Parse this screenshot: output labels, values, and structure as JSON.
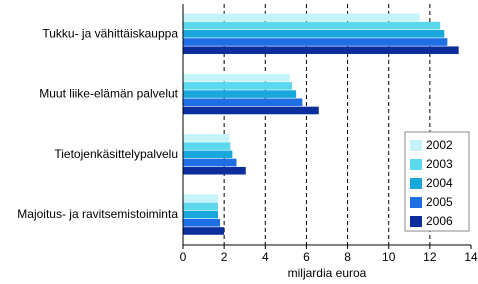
{
  "chart_data": {
    "type": "hbar",
    "categories": [
      "Tukku- ja vähittäiskauppa",
      "Muut liike-elämän palvelut",
      "Tietojenkäsittelypalvelu",
      "Majoitus- ja ravitsemistoiminta"
    ],
    "series": [
      {
        "name": "2002",
        "color": "#c4f4f8",
        "values": [
          11.5,
          5.2,
          2.25,
          1.7
        ]
      },
      {
        "name": "2003",
        "color": "#5cd8ee",
        "values": [
          12.5,
          5.3,
          2.3,
          1.7
        ]
      },
      {
        "name": "2004",
        "color": "#18a8de",
        "values": [
          12.7,
          5.5,
          2.4,
          1.7
        ]
      },
      {
        "name": "2005",
        "color": "#1e6ee6",
        "values": [
          12.85,
          5.8,
          2.6,
          1.8
        ]
      },
      {
        "name": "2006",
        "color": "#0c2d9c",
        "values": [
          13.4,
          6.6,
          3.05,
          2.0
        ]
      }
    ],
    "xlabel": "miljardia euroa",
    "xlim": [
      0,
      14
    ],
    "xticks": [
      0,
      2,
      4,
      6,
      8,
      10,
      12,
      14
    ],
    "grid": true,
    "legend": "lower right"
  }
}
